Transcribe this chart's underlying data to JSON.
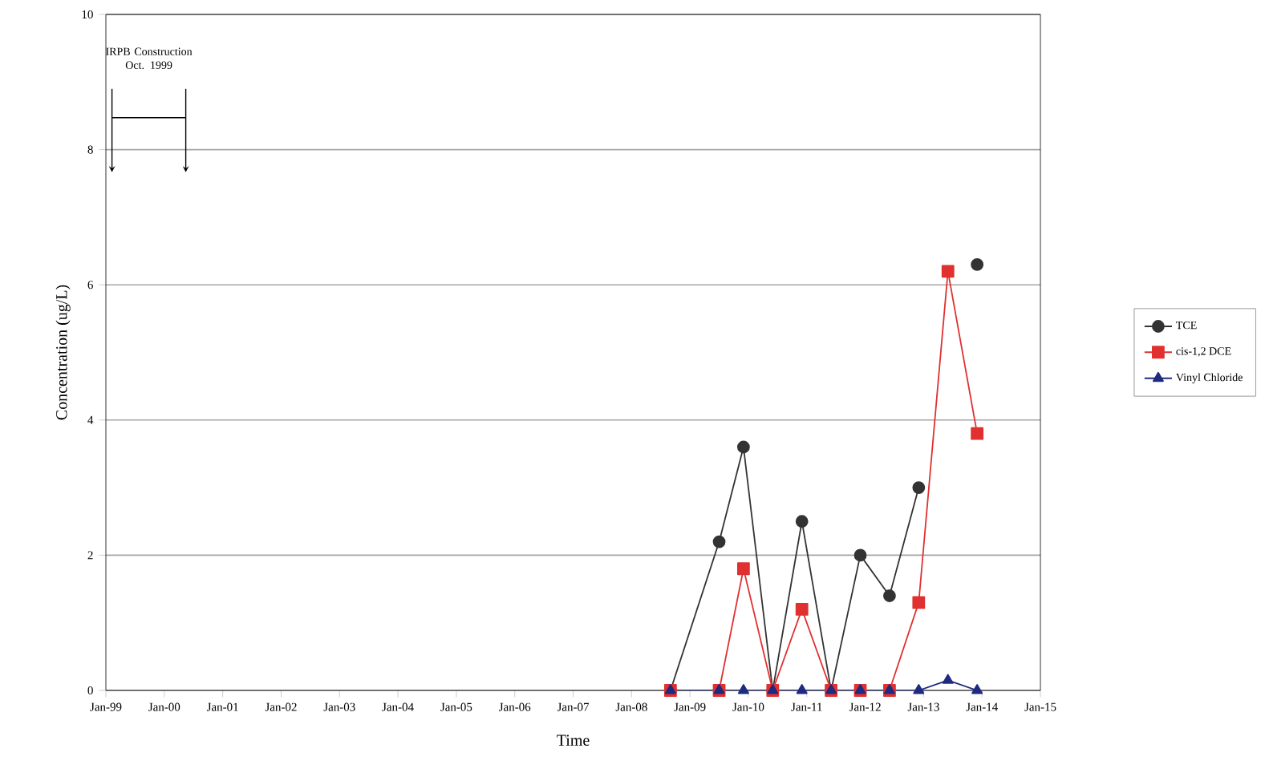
{
  "chart_data": {
    "type": "line",
    "xlabel": "Time",
    "ylabel": "Concentration (ug/L)",
    "x": [
      "2008-09",
      "2009-07",
      "2009-12",
      "2010-06",
      "2010-12",
      "2011-06",
      "2011-12",
      "2012-06",
      "2012-12",
      "2013-06",
      "2013-12"
    ],
    "series": [
      {
        "name": "TCE",
        "color": "#333333",
        "marker": "circle",
        "values": [
          0,
          2.2,
          3.6,
          0,
          2.5,
          0,
          2.0,
          1.4,
          3.0,
          null,
          6.3
        ]
      },
      {
        "name": "cis-1,2 DCE",
        "color": "#e03030",
        "marker": "square",
        "values": [
          0,
          0,
          1.8,
          0,
          1.2,
          0,
          0,
          0,
          1.3,
          6.2,
          3.8
        ]
      },
      {
        "name": "Vinyl Chloride",
        "color": "#1f2a80",
        "marker": "triangle",
        "values": [
          0,
          0,
          0,
          0,
          0,
          0,
          0,
          0,
          0,
          0.15,
          0
        ]
      }
    ],
    "xlim": [
      "1999-01",
      "2015-01"
    ],
    "xticks": [
      {
        "value": "1999-01",
        "label": "Jan-99"
      },
      {
        "value": "2000-01",
        "label": "Jan-00"
      },
      {
        "value": "2001-01",
        "label": "Jan-01"
      },
      {
        "value": "2002-01",
        "label": "Jan-02"
      },
      {
        "value": "2003-01",
        "label": "Jan-03"
      },
      {
        "value": "2004-01",
        "label": "Jan-04"
      },
      {
        "value": "2005-01",
        "label": "Jan-05"
      },
      {
        "value": "2006-01",
        "label": "Jan-06"
      },
      {
        "value": "2007-01",
        "label": "Jan-07"
      },
      {
        "value": "2008-01",
        "label": "Jan-08"
      },
      {
        "value": "2009-01",
        "label": "Jan-09"
      },
      {
        "value": "2010-01",
        "label": "Jan-10"
      },
      {
        "value": "2011-01",
        "label": "Jan-11"
      },
      {
        "value": "2012-01",
        "label": "Jan-12"
      },
      {
        "value": "2013-01",
        "label": "Jan-13"
      },
      {
        "value": "2014-01",
        "label": "Jan-14"
      },
      {
        "value": "2015-01",
        "label": "Jan-15"
      }
    ],
    "ylim": [
      0,
      10
    ],
    "yticks": [
      0,
      2,
      4,
      6,
      8,
      10
    ],
    "grid": "y",
    "legend": "right",
    "line_style": "solid",
    "annotations": [
      "IRPB Construction Oct. 1999"
    ]
  }
}
